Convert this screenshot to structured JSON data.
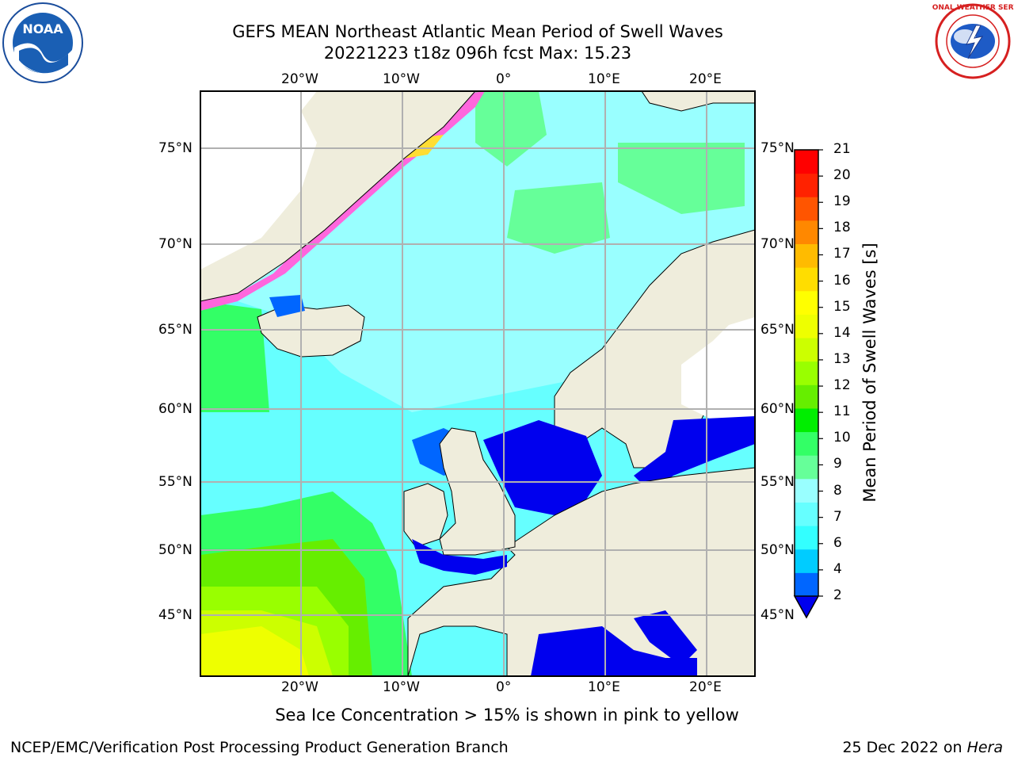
{
  "header": {
    "title_line1": "GEFS MEAN Northeast Atlantic Mean Period of Swell Waves",
    "title_line2": "20221223 t18z 096h fcst   Max: 15.23"
  },
  "logos": {
    "noaa_text": "NOAA",
    "noaa_ring": "NATIONAL OCEANIC AND ATMOSPHERIC ADMINISTRATION · U.S. DEPARTMENT OF COMMERCE",
    "nws_ring": "NATIONAL WEATHER SERVICE"
  },
  "map": {
    "lon_labels_top": [
      "20°W",
      "10°W",
      "0°",
      "10°E",
      "20°E"
    ],
    "lon_labels_bottom": [
      "20°W",
      "10°W",
      "0°",
      "10°E",
      "20°E"
    ],
    "lat_labels_left": [
      "75°N",
      "70°N",
      "65°N",
      "60°N",
      "55°N",
      "50°N",
      "45°N"
    ],
    "lat_labels_right": [
      "75°N",
      "70°N",
      "65°N",
      "60°N",
      "55°N",
      "50°N",
      "45°N"
    ],
    "colors": {
      "land": "#efeddc",
      "ocean_mid": "#99ffff",
      "grid": "#b0b0b0"
    }
  },
  "colorbar": {
    "label": "Mean Period of Swell Waves [s]",
    "ticks": [
      "2",
      "4",
      "6",
      "7",
      "8",
      "9",
      "10",
      "11",
      "12",
      "13",
      "14",
      "15",
      "16",
      "17",
      "18",
      "19",
      "20",
      "21"
    ],
    "colors": [
      "#0066ff",
      "#00ccff",
      "#33ffff",
      "#66ffff",
      "#99ffff",
      "#66ff99",
      "#33ff66",
      "#00ee00",
      "#66ee00",
      "#99ff00",
      "#ccff00",
      "#eeff00",
      "#ffff00",
      "#ffdd00",
      "#ffbb00",
      "#ff8800",
      "#ff5500",
      "#ff2200",
      "#ff0000"
    ],
    "under_color": "#0000ee"
  },
  "caption": "Sea Ice Concentration > 15% is shown in pink to yellow",
  "footer": {
    "left": "NCEP/EMC/Verification Post Processing Product Generation Branch",
    "right_prefix": "25 Dec 2022 on ",
    "right_host": "Hera"
  }
}
